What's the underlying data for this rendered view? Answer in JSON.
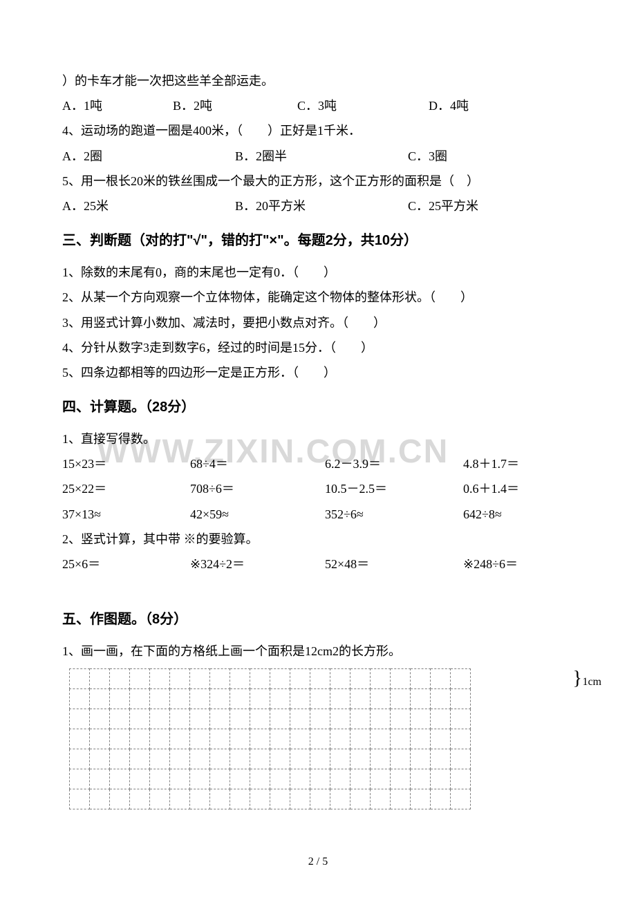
{
  "watermark": "WWW.ZIXIN.COM.CN",
  "q3_stem": "）的卡车才能一次把这些羊全部运走。",
  "q3_opts": {
    "a": "A．1吨",
    "b": "B．2吨",
    "c": "C．3吨",
    "d": "D．4吨"
  },
  "q4_stem": "4、运动场的跑道一圈是400米，（　　）正好是1千米．",
  "q4_opts": {
    "a": "A．2圈",
    "b": "B．2圈半",
    "c": "C．3圈"
  },
  "q5_stem": "5、用一根长20米的铁丝围成一个最大的正方形，这个正方形的面积是（　）",
  "q5_opts": {
    "a": "A．25米",
    "b": "B．20平方米",
    "c": "C．25平方米"
  },
  "section3_title": "三、判断题（对的打\"√\"，错的打\"×\"。每题2分，共10分）",
  "j1": "1、除数的末尾有0，商的末尾也一定有0．（　　）",
  "j2": "2、从某一个方向观察一个立体物体，能确定这个物体的整体形状。（　　）",
  "j3": "3、用竖式计算小数加、减法时，要把小数点对齐。（　　）",
  "j4": "4、分针从数字3走到数字6，经过的时间是15分．（　　）",
  "j5": "5、四条边都相等的四边形一定是正方形．（　　）",
  "section4_title": "四、计算题。（28分）",
  "calc1_label": "1、直接写得数。",
  "calc_r1": {
    "a": "15×23＝",
    "b": "68÷4＝",
    "c": "6.2－3.9＝",
    "d": "4.8＋1.7＝"
  },
  "calc_r2": {
    "a": "25×22＝",
    "b": "708÷6＝",
    "c": "10.5－2.5＝",
    "d": "0.6＋1.4＝"
  },
  "calc_r3": {
    "a": "37×13≈",
    "b": "42×59≈",
    "c": "352÷6≈",
    "d": "642÷8≈"
  },
  "calc2_label": "2、竖式计算，其中带 ※的要验算。",
  "calc2_r1": {
    "a": "25×6＝",
    "b": "※324÷2＝",
    "c": "52×48＝",
    "d": "※248÷6＝"
  },
  "section5_title": "五、作图题。（8分）",
  "draw1": "1、画一画，在下面的方格纸上画一个面积是12cm2的长方形。",
  "grid_label": "1cm",
  "page_num": "2 / 5"
}
